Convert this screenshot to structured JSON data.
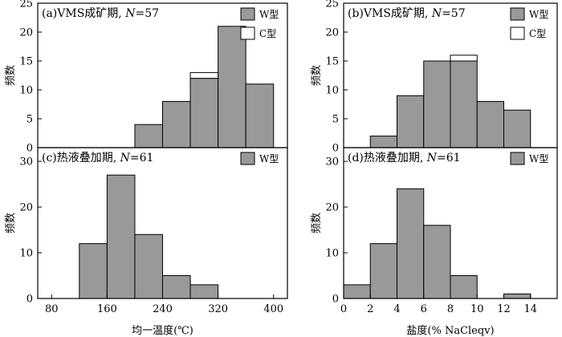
{
  "chart_data": [
    {
      "id": "a",
      "type": "bar",
      "title_prefix": "(a)VMS成矿期, ",
      "title_n_label": "N",
      "title_n_value": "=57",
      "ylabel": "频数",
      "xlabel": "",
      "xlim": [
        60,
        420
      ],
      "ylim": [
        0,
        25
      ],
      "yticks": [
        0,
        5,
        10,
        15,
        20,
        25
      ],
      "xticks": [],
      "bin_edges": [
        200,
        240,
        280,
        320,
        360,
        400
      ],
      "series": [
        {
          "name": "W型",
          "color": "#999999",
          "values": [
            4,
            8,
            12,
            21,
            11
          ]
        },
        {
          "name": "C型",
          "color": "#ffffff",
          "values": [
            0,
            0,
            1,
            0,
            0
          ]
        }
      ],
      "legend": "top-right"
    },
    {
      "id": "b",
      "type": "bar",
      "title_prefix": "(b)VMS成矿期, ",
      "title_n_label": "N",
      "title_n_value": "=57",
      "ylabel": "频数",
      "xlabel": "",
      "xlim": [
        0,
        16
      ],
      "ylim": [
        0,
        25
      ],
      "yticks": [
        0,
        5,
        10,
        15,
        20,
        25
      ],
      "xticks": [],
      "bin_edges": [
        2,
        4,
        6,
        8,
        10,
        12,
        14
      ],
      "series": [
        {
          "name": "W型",
          "color": "#999999",
          "values": [
            2,
            9,
            15,
            15,
            8,
            6.5
          ]
        },
        {
          "name": "C型",
          "color": "#ffffff",
          "values": [
            0,
            0,
            0,
            1,
            0,
            0
          ]
        }
      ],
      "legend": "top-right"
    },
    {
      "id": "c",
      "type": "bar",
      "title_prefix": "(c)热液叠加期, ",
      "title_n_label": "N",
      "title_n_value": "=61",
      "ylabel": "频数",
      "xlabel": "均一温度(℃)",
      "xlim": [
        60,
        420
      ],
      "ylim": [
        0,
        33
      ],
      "yticks": [
        0,
        10,
        20,
        30
      ],
      "xticks": [
        80,
        160,
        240,
        320,
        400
      ],
      "bin_edges": [
        120,
        160,
        200,
        240,
        280,
        320
      ],
      "series": [
        {
          "name": "W型",
          "color": "#999999",
          "values": [
            12,
            27,
            14,
            5,
            3
          ]
        }
      ],
      "legend": "top-right"
    },
    {
      "id": "d",
      "type": "bar",
      "title_prefix": "(d)热液叠加期, ",
      "title_n_label": "N",
      "title_n_value": "=61",
      "ylabel": "频数",
      "xlabel": "盐度(% NaCleqv)",
      "xlim": [
        0,
        16
      ],
      "ylim": [
        0,
        33
      ],
      "yticks": [
        0,
        10,
        20,
        30
      ],
      "xticks": [
        0,
        2,
        4,
        6,
        8,
        10,
        12,
        14
      ],
      "bin_edges": [
        0,
        2,
        4,
        6,
        8,
        10,
        12,
        14
      ],
      "series": [
        {
          "name": "W型",
          "color": "#999999",
          "values": [
            3,
            12,
            24,
            16,
            5,
            0,
            1
          ]
        }
      ],
      "legend": "top-right"
    }
  ]
}
